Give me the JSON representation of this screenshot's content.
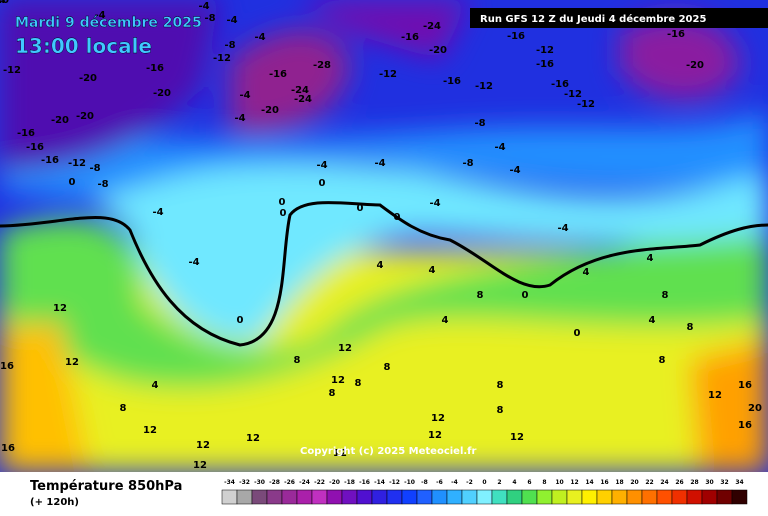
{
  "header": {
    "date": "Mardi 9 décembre 2025",
    "time": "13:00 locale",
    "run": "Run GFS 12 Z du Jeudi 4 décembre 2025",
    "copyright": "Copyright (c) 2025 Meteociel.fr"
  },
  "footer": {
    "title": "Température 850hPa",
    "lead": "(+ 120h)"
  },
  "legend": {
    "ticks": [
      -34,
      -32,
      -30,
      -28,
      -26,
      -24,
      -22,
      -20,
      -18,
      -16,
      -14,
      -12,
      -10,
      -8,
      -6,
      -4,
      -2,
      0,
      2,
      4,
      6,
      8,
      10,
      12,
      14,
      16,
      18,
      20,
      22,
      24,
      26,
      28,
      30,
      32,
      34
    ],
    "colors": [
      "#d0d0d0",
      "#a8a8a8",
      "#7a4a7a",
      "#8a3a8a",
      "#9a2a9a",
      "#aa20aa",
      "#c030c0",
      "#9010b0",
      "#7010c0",
      "#5010d0",
      "#3020e0",
      "#2030f0",
      "#1040ff",
      "#2060ff",
      "#2090ff",
      "#30b0ff",
      "#50d0ff",
      "#80f0ff",
      "#40e0c0",
      "#30d080",
      "#50e050",
      "#90f030",
      "#c0f020",
      "#e8f020",
      "#fff000",
      "#ffd000",
      "#ffb000",
      "#ff9000",
      "#ff7000",
      "#ff5000",
      "#f03000",
      "#d01000",
      "#a00000",
      "#700000",
      "#300000"
    ]
  },
  "map_labels": [
    -12,
    -20,
    -16,
    -20,
    -20,
    -20,
    -16,
    -16,
    -16,
    -12,
    -8,
    0,
    -8,
    -4,
    -4,
    0,
    0,
    0,
    -4,
    0,
    0,
    -4,
    0,
    -4,
    -8,
    -8,
    -4,
    -4,
    -4,
    0,
    4,
    4,
    8,
    8,
    4,
    0,
    8,
    12,
    16,
    20,
    16,
    4,
    4,
    4,
    8,
    8,
    12,
    8,
    12,
    8,
    8,
    8,
    8,
    12,
    12,
    12,
    12,
    12,
    12,
    12,
    12,
    8,
    4,
    12,
    12,
    16,
    16,
    -24,
    -20,
    -16,
    -12,
    -16,
    -12,
    -16,
    -12,
    -16,
    -16,
    -12,
    -12,
    -16,
    -20,
    -28,
    -16,
    -24,
    -24,
    -20,
    -4,
    -4,
    -12,
    -8,
    -4,
    -4,
    -8,
    -4,
    -4,
    -20,
    -4
  ]
}
